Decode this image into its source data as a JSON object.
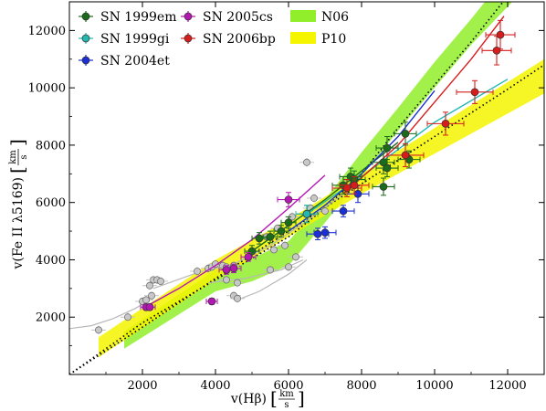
{
  "chart_data": {
    "type": "scatter",
    "xlim": [
      0,
      13000
    ],
    "ylim": [
      0,
      13000
    ],
    "x_ticks": [
      2000,
      4000,
      6000,
      8000,
      10000,
      12000
    ],
    "y_ticks": [
      2000,
      4000,
      6000,
      8000,
      10000,
      12000
    ],
    "x_tick_labels": [
      "2000",
      "4000",
      "6000",
      "8000",
      "10000",
      "12000"
    ],
    "y_tick_labels": [
      "2000",
      "4000",
      "6000",
      "8000",
      "10000",
      "12000"
    ],
    "x_axis_label": "v(Hβ)",
    "y_axis_label": "v(Fe II λ5169)",
    "unit_num": "km",
    "unit_den": "s",
    "legend_position": "top-left",
    "legend": [
      {
        "label": "SN 1999em",
        "color": "#1a6b1a",
        "kind": "marker"
      },
      {
        "label": "SN 1999gi",
        "color": "#22b8b0",
        "kind": "marker"
      },
      {
        "label": "SN 2004et",
        "color": "#1a2fd6",
        "kind": "marker"
      },
      {
        "label": "SN 2005cs",
        "color": "#b416b4",
        "kind": "marker"
      },
      {
        "label": "SN 2006bp",
        "color": "#d81c1c",
        "kind": "marker"
      },
      {
        "label": "N06",
        "color": "#90ee2a",
        "kind": "band"
      },
      {
        "label": "P10",
        "color": "#f5f500",
        "kind": "band"
      }
    ],
    "bands": [
      {
        "name": "N06",
        "color": "#90ee2a",
        "upper": [
          [
            1500,
            1500
          ],
          [
            4000,
            3650
          ],
          [
            5000,
            4050
          ],
          [
            6000,
            4650
          ],
          [
            7000,
            6100
          ],
          [
            8000,
            7750
          ],
          [
            9000,
            9300
          ],
          [
            10000,
            10900
          ],
          [
            11000,
            12400
          ],
          [
            12200,
            14300
          ]
        ],
        "lower": [
          [
            1500,
            900
          ],
          [
            4000,
            2900
          ],
          [
            5000,
            3250
          ],
          [
            6000,
            3800
          ],
          [
            7000,
            5300
          ],
          [
            8000,
            6900
          ],
          [
            9000,
            8500
          ],
          [
            10000,
            10000
          ],
          [
            11000,
            11500
          ],
          [
            12200,
            13100
          ]
        ]
      },
      {
        "name": "P10",
        "color": "#f5f500",
        "upper": [
          [
            800,
            1300
          ],
          [
            4000,
            4000
          ],
          [
            6000,
            5400
          ],
          [
            8000,
            7000
          ],
          [
            10000,
            8600
          ],
          [
            12000,
            10200
          ],
          [
            13000,
            11000
          ]
        ],
        "lower": [
          [
            800,
            600
          ],
          [
            4000,
            3300
          ],
          [
            6000,
            4800
          ],
          [
            8000,
            6300
          ],
          [
            10000,
            7700
          ],
          [
            12000,
            9100
          ],
          [
            13000,
            9800
          ]
        ]
      }
    ],
    "dotted_lines": [
      {
        "color": "#000000",
        "points": [
          [
            0,
            0
          ],
          [
            2000,
            1800
          ],
          [
            4000,
            3300
          ],
          [
            6000,
            4800
          ],
          [
            7000,
            5800
          ],
          [
            8000,
            7000
          ],
          [
            9000,
            8600
          ],
          [
            10000,
            10100
          ],
          [
            11000,
            11600
          ],
          [
            12000,
            13200
          ]
        ]
      },
      {
        "color": "#000000",
        "points": [
          [
            0,
            0
          ],
          [
            2000,
            1650
          ],
          [
            4000,
            3350
          ],
          [
            6000,
            5000
          ],
          [
            8000,
            6650
          ],
          [
            10000,
            8300
          ],
          [
            12000,
            9950
          ],
          [
            13000,
            10800
          ]
        ]
      }
    ],
    "gray_points": [
      [
        800,
        1550
      ],
      [
        1600,
        2000
      ],
      [
        2000,
        2550
      ],
      [
        2100,
        2600
      ],
      [
        2200,
        3100
      ],
      [
        2300,
        3300
      ],
      [
        2400,
        3300
      ],
      [
        2500,
        3250
      ],
      [
        2250,
        2750
      ],
      [
        3500,
        3600
      ],
      [
        3800,
        3700
      ],
      [
        3900,
        3750
      ],
      [
        4000,
        3850
      ],
      [
        4200,
        3800
      ],
      [
        4300,
        3750
      ],
      [
        4500,
        3800
      ],
      [
        4300,
        3300
      ],
      [
        4500,
        2750
      ],
      [
        4600,
        2650
      ],
      [
        4600,
        3200
      ],
      [
        5500,
        3650
      ],
      [
        5600,
        4350
      ],
      [
        5900,
        4500
      ],
      [
        6000,
        3750
      ],
      [
        6200,
        4100
      ],
      [
        5400,
        4800
      ],
      [
        5700,
        5100
      ],
      [
        6100,
        5500
      ],
      [
        6500,
        7400
      ],
      [
        6600,
        5800
      ],
      [
        6700,
        6150
      ],
      [
        7000,
        5700
      ]
    ],
    "gray_curves": [
      [
        [
          0,
          1600
        ],
        [
          600,
          1700
        ],
        [
          1200,
          1950
        ],
        [
          1800,
          2300
        ],
        [
          2200,
          2600
        ]
      ],
      [
        [
          2300,
          3000
        ],
        [
          3500,
          3550
        ],
        [
          4500,
          3850
        ],
        [
          5500,
          4500
        ],
        [
          6500,
          5350
        ],
        [
          7500,
          6300
        ]
      ],
      [
        [
          3800,
          3200
        ],
        [
          4800,
          3350
        ],
        [
          5800,
          3650
        ],
        [
          6400,
          4000
        ]
      ],
      [
        [
          4600,
          2600
        ],
        [
          5200,
          2900
        ],
        [
          6000,
          3500
        ],
        [
          6500,
          4000
        ]
      ]
    ],
    "series": [
      {
        "name": "SN 1999em",
        "color": "#1a6b1a",
        "fit": [
          [
            5000,
            4300
          ],
          [
            6000,
            5200
          ],
          [
            7000,
            6100
          ],
          [
            8000,
            7100
          ],
          [
            9000,
            8100
          ]
        ],
        "x": [
          5000,
          5200,
          5500,
          5800,
          6000,
          6500,
          7500,
          7700,
          7800,
          8600,
          8600,
          8700,
          8700,
          9200,
          9300
        ],
        "y": [
          4300,
          4750,
          4800,
          5000,
          5300,
          5600,
          6600,
          6900,
          6800,
          6550,
          7400,
          7200,
          7900,
          8400,
          7500
        ],
        "xerr": [
          200,
          200,
          200,
          200,
          200,
          300,
          300,
          300,
          300,
          300,
          300,
          300,
          300,
          300,
          300
        ],
        "yerr": [
          200,
          200,
          200,
          200,
          200,
          300,
          300,
          300,
          300,
          300,
          400,
          300,
          400,
          400,
          300
        ]
      },
      {
        "name": "SN 1999gi",
        "color": "#22b8b0",
        "fit": [
          [
            6500,
            5600
          ],
          [
            8000,
            6900
          ],
          [
            10000,
            8800
          ],
          [
            12000,
            10300
          ]
        ],
        "x": [
          6500
        ],
        "y": [
          5600
        ],
        "xerr": [
          300
        ],
        "yerr": [
          300
        ]
      },
      {
        "name": "SN 2004et",
        "color": "#1a2fd6",
        "fit": [
          [
            6000,
            5000
          ],
          [
            7000,
            5900
          ],
          [
            8000,
            7000
          ],
          [
            9000,
            8300
          ],
          [
            10000,
            9900
          ]
        ],
        "x": [
          6800,
          7000,
          7500,
          7900
        ],
        "y": [
          4900,
          4950,
          5700,
          6300
        ],
        "xerr": [
          300,
          300,
          300,
          300
        ],
        "yerr": [
          200,
          200,
          200,
          300
        ]
      },
      {
        "name": "SN 2005cs",
        "color": "#b416b4",
        "fit": [
          [
            2000,
            2300
          ],
          [
            3000,
            3000
          ],
          [
            4000,
            3800
          ],
          [
            5000,
            4700
          ],
          [
            6000,
            5800
          ],
          [
            7000,
            6950
          ]
        ],
        "x": [
          2100,
          2200,
          3900,
          4300,
          4500,
          4900,
          6000
        ],
        "y": [
          2350,
          2350,
          2550,
          3650,
          3700,
          4100,
          6100
        ],
        "xerr": [
          150,
          150,
          150,
          200,
          200,
          200,
          300
        ],
        "yerr": [
          100,
          100,
          100,
          150,
          150,
          150,
          250
        ]
      },
      {
        "name": "SN 2006bp",
        "color": "#d81c1c",
        "fit": [
          [
            7500,
            6300
          ],
          [
            9000,
            8000
          ],
          [
            10000,
            9500
          ],
          [
            11000,
            11000
          ],
          [
            11900,
            12500
          ]
        ],
        "x": [
          7600,
          7800,
          9200,
          10300,
          11100,
          11700,
          11800
        ],
        "y": [
          6500,
          6600,
          7650,
          8750,
          9850,
          11300,
          11850
        ],
        "xerr": [
          400,
          400,
          500,
          500,
          500,
          400,
          400
        ],
        "yerr": [
          300,
          300,
          400,
          400,
          400,
          500,
          500
        ]
      }
    ]
  }
}
